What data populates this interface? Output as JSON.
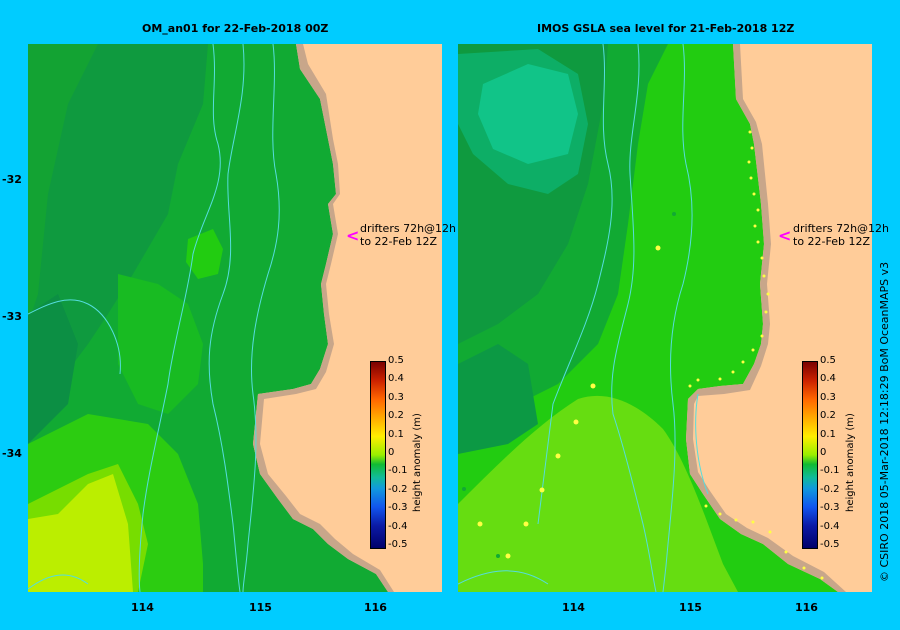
{
  "left_map": {
    "title": "OM_an01  for 22-Feb-2018 00Z",
    "note_line1": "drifters 72h@12h",
    "note_line2": "to 22-Feb 12Z"
  },
  "right_map": {
    "title": "IMOS GSLA sea level  for 21-Feb-2018 12Z",
    "note_line1": "drifters 72h@12h",
    "note_line2": "to 22-Feb 12Z"
  },
  "axes": {
    "lat_ticks": [
      "-32",
      "-33",
      "-34"
    ],
    "lon_ticks": [
      "114",
      "115",
      "116"
    ]
  },
  "colorbar": {
    "title": "height anomaly (m)",
    "ticks": [
      "0.5",
      "0.4",
      "0.3",
      "0.2",
      "0.1",
      "0",
      "-0.1",
      "-0.2",
      "-0.3",
      "-0.4",
      "-0.5"
    ]
  },
  "credit": "© CSIRO 2018   05-Mar-2018 12:18:29 BoM OceanMAPS v3",
  "colors": {
    "background": "#00ccff",
    "land": "#ffcc99",
    "coast_shelf": "#c8a68a",
    "arrow": "#ff00ff"
  }
}
